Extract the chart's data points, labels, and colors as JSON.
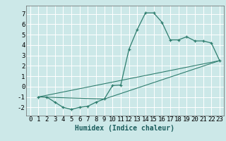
{
  "title": "",
  "xlabel": "Humidex (Indice chaleur)",
  "ylabel": "",
  "background_color": "#cce8e8",
  "grid_color": "#ffffff",
  "line_color": "#2e7d6e",
  "marker": "+",
  "xlim": [
    -0.5,
    23.5
  ],
  "ylim": [
    -2.8,
    7.8
  ],
  "xticks": [
    0,
    1,
    2,
    3,
    4,
    5,
    6,
    7,
    8,
    9,
    10,
    11,
    12,
    13,
    14,
    15,
    16,
    17,
    18,
    19,
    20,
    21,
    22,
    23
  ],
  "yticks": [
    -2,
    -1,
    0,
    1,
    2,
    3,
    4,
    5,
    6,
    7
  ],
  "curve1_x": [
    1,
    2,
    3,
    4,
    5,
    6,
    7,
    8,
    9,
    10,
    11,
    12,
    13,
    14,
    15,
    16,
    17,
    18,
    19,
    20,
    21,
    22,
    23
  ],
  "curve1_y": [
    -1.0,
    -1.0,
    -1.5,
    -2.0,
    -2.2,
    -2.0,
    -1.9,
    -1.5,
    -1.2,
    0.1,
    0.15,
    3.6,
    5.5,
    7.1,
    7.1,
    6.2,
    4.5,
    4.5,
    4.8,
    4.4,
    4.4,
    4.2,
    2.5
  ],
  "curve2_x": [
    1,
    23
  ],
  "curve2_y": [
    -1.0,
    2.5
  ],
  "curve3_x": [
    1,
    9,
    23
  ],
  "curve3_y": [
    -1.0,
    -1.2,
    2.5
  ],
  "xlabel_fontsize": 7,
  "tick_fontsize": 6.5
}
